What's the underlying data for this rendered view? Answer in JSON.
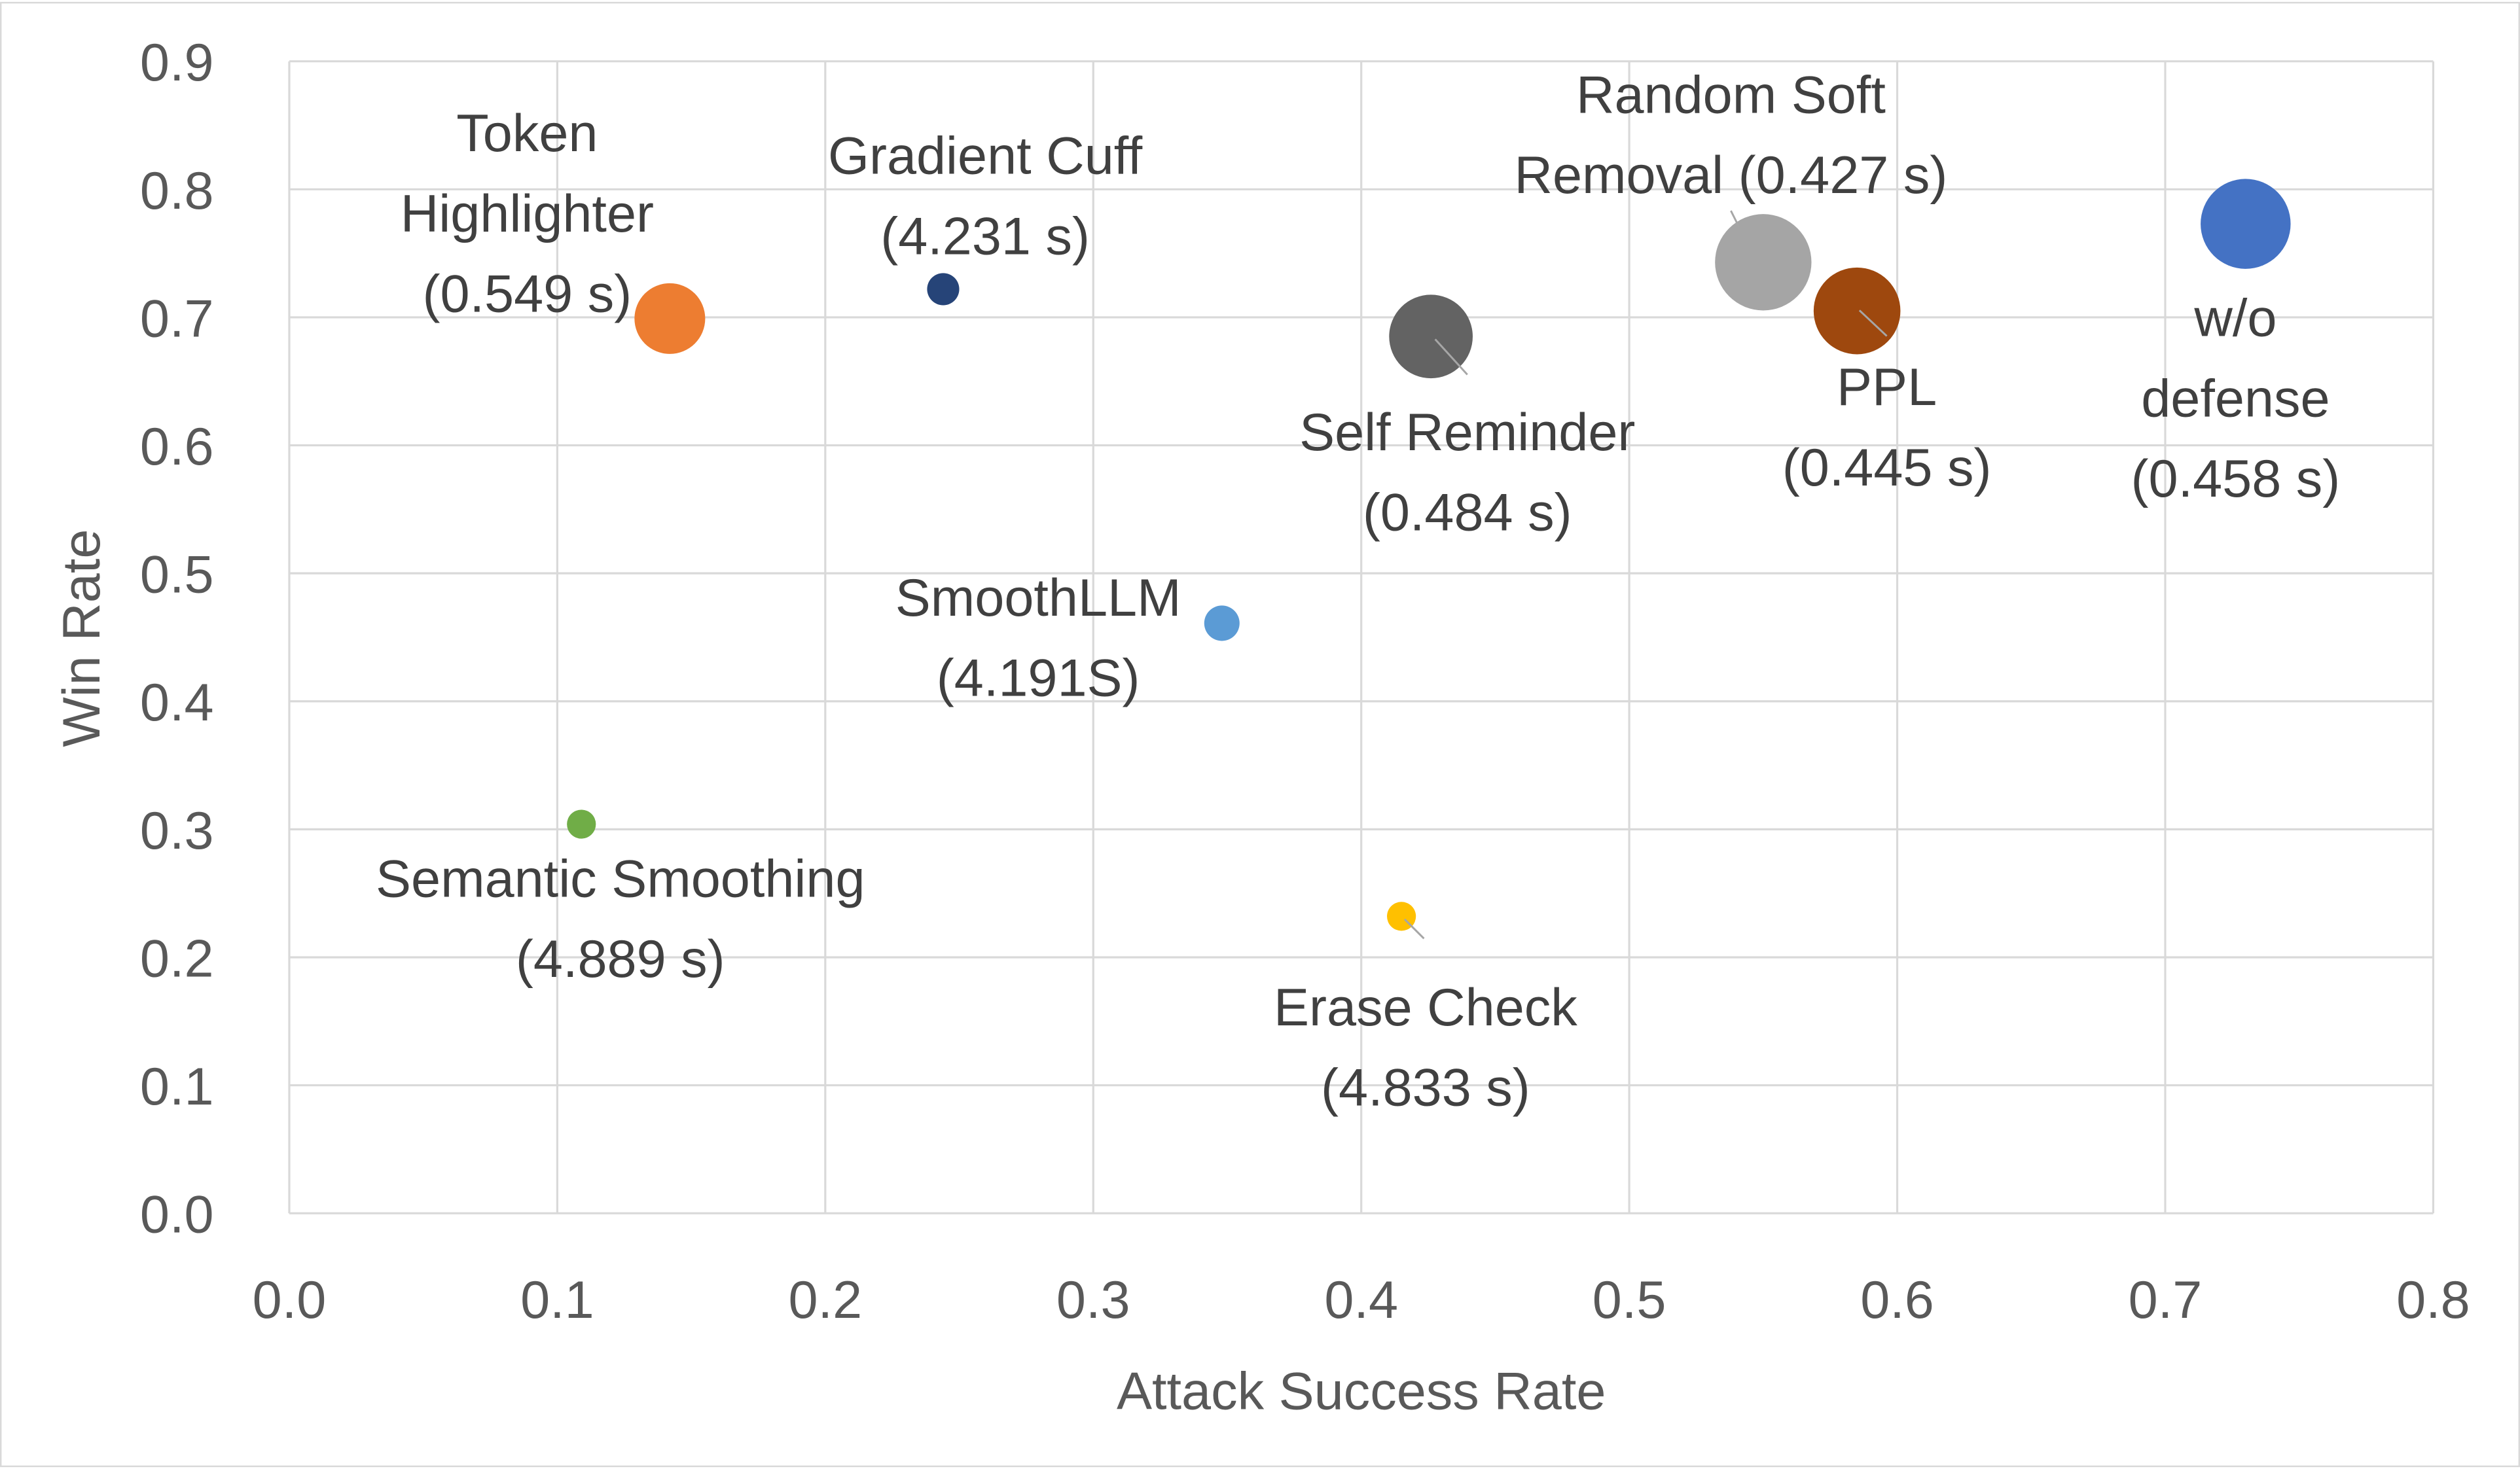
{
  "chart_data": {
    "type": "scatter",
    "subtype": "bubble",
    "title": "",
    "xlabel": "Attack Success Rate",
    "ylabel": "Win Rate",
    "xlim": [
      0,
      0.8
    ],
    "ylim": [
      0,
      0.9
    ],
    "x_ticks": [
      "0.0",
      "0.1",
      "0.2",
      "0.3",
      "0.4",
      "0.5",
      "0.6",
      "0.7",
      "0.8"
    ],
    "y_ticks": [
      "0.0",
      "0.1",
      "0.2",
      "0.3",
      "0.4",
      "0.5",
      "0.6",
      "0.7",
      "0.8",
      "0.9"
    ],
    "grid": true,
    "legend": "none",
    "points": [
      {
        "label_lines": [
          "Token",
          "Highlighter",
          "(0.549 s)"
        ],
        "x": 0.142,
        "y": 0.699,
        "bubble_size": 22,
        "color": "#ED7D31"
      },
      {
        "label_lines": [
          "Gradient Cuff",
          "(4.231 s)"
        ],
        "x": 0.244,
        "y": 0.722,
        "bubble_size": 10,
        "color": "#264478"
      },
      {
        "label_lines": [
          "Self Reminder",
          "(0.484 s)"
        ],
        "x": 0.426,
        "y": 0.685,
        "bubble_size": 26,
        "color": "#636363"
      },
      {
        "label_lines": [
          "Random Soft",
          "Removal (0.427 s)"
        ],
        "x": 0.55,
        "y": 0.743,
        "bubble_size": 30,
        "color": "#A5A5A5"
      },
      {
        "label_lines": [
          "PPL",
          "(0.445 s)"
        ],
        "x": 0.585,
        "y": 0.705,
        "bubble_size": 27,
        "color": "#9E480E"
      },
      {
        "label_lines": [
          "w/o",
          "defense",
          "(0.458 s)"
        ],
        "x": 0.73,
        "y": 0.773,
        "bubble_size": 28,
        "color": "#4472C4"
      },
      {
        "label_lines": [
          "SmoothLLM",
          "(4.191S)"
        ],
        "x": 0.348,
        "y": 0.461,
        "bubble_size": 11,
        "color": "#5B9BD5"
      },
      {
        "label_lines": [
          "Semantic Smoothing",
          "(4.889 s)"
        ],
        "x": 0.109,
        "y": 0.304,
        "bubble_size": 9,
        "color": "#70AD47"
      },
      {
        "label_lines": [
          "Erase Check",
          "(4.833 s)"
        ],
        "x": 0.415,
        "y": 0.232,
        "bubble_size": 9,
        "color": "#FFC000"
      }
    ]
  }
}
